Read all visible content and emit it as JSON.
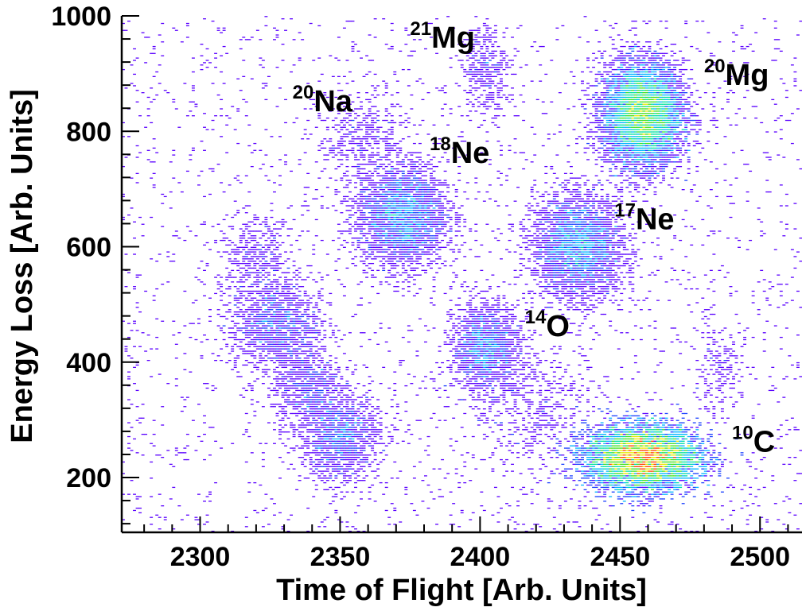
{
  "chart_data": {
    "type": "heatmap",
    "xlabel": "Time of Flight [Arb. Units]",
    "ylabel": "Energy Loss [Arb. Units]",
    "xlim": [
      2272,
      2515
    ],
    "ylim": [
      105,
      1000
    ],
    "x_ticks": [
      {
        "value": 2300,
        "label": "2300"
      },
      {
        "value": 2350,
        "label": "2350"
      },
      {
        "value": 2400,
        "label": "2400"
      },
      {
        "value": 2450,
        "label": "2450"
      },
      {
        "value": 2500,
        "label": "2500"
      }
    ],
    "y_ticks": [
      {
        "value": 200,
        "label": "200"
      },
      {
        "value": 400,
        "label": "400"
      },
      {
        "value": 600,
        "label": "600"
      },
      {
        "value": 800,
        "label": "800"
      },
      {
        "value": 1000,
        "label": "1000"
      }
    ],
    "grid": false,
    "legend": "none",
    "colormap": [
      "#5a00ff",
      "#1a40ff",
      "#00b4ff",
      "#00e0a0",
      "#40e020",
      "#e8e800",
      "#ff4000"
    ],
    "clusters": [
      {
        "x": 2458,
        "y": 830,
        "sx": 7,
        "sy": 45,
        "counts": 9000
      },
      {
        "x": 2458,
        "y": 235,
        "sx": 10,
        "sy": 28,
        "counts": 14000
      },
      {
        "x": 2435,
        "y": 600,
        "sx": 8,
        "sy": 45,
        "counts": 3200
      },
      {
        "x": 2372,
        "y": 655,
        "sx": 8,
        "sy": 45,
        "counts": 3000
      },
      {
        "x": 2402,
        "y": 425,
        "sx": 6,
        "sy": 38,
        "counts": 1600
      },
      {
        "x": 2350,
        "y": 270,
        "sx": 7,
        "sy": 38,
        "counts": 1400
      },
      {
        "x": 2327,
        "y": 465,
        "sx": 8,
        "sy": 38,
        "counts": 1300
      },
      {
        "x": 2338,
        "y": 360,
        "sx": 6,
        "sy": 35,
        "counts": 700
      },
      {
        "x": 2320,
        "y": 580,
        "sx": 7,
        "sy": 35,
        "counts": 420
      },
      {
        "x": 2358,
        "y": 790,
        "sx": 8,
        "sy": 40,
        "counts": 420
      },
      {
        "x": 2402,
        "y": 910,
        "sx": 4,
        "sy": 38,
        "counts": 360
      },
      {
        "x": 2485,
        "y": 385,
        "sx": 4,
        "sy": 35,
        "counts": 180
      },
      {
        "x": 2420,
        "y": 320,
        "sx": 12,
        "sy": 60,
        "counts": 500
      }
    ],
    "annotations": [
      {
        "mass": "21",
        "element": "Mg",
        "x": 2375,
        "y": 945
      },
      {
        "mass": "20",
        "element": "Mg",
        "x": 2480,
        "y": 880
      },
      {
        "mass": "20",
        "element": "Na",
        "x": 2333,
        "y": 835
      },
      {
        "mass": "18",
        "element": "Ne",
        "x": 2382,
        "y": 745
      },
      {
        "mass": "17",
        "element": "Ne",
        "x": 2448,
        "y": 630
      },
      {
        "mass": "14",
        "element": "O",
        "x": 2416,
        "y": 445
      },
      {
        "mass": "10",
        "element": "C",
        "x": 2490,
        "y": 245
      }
    ]
  }
}
